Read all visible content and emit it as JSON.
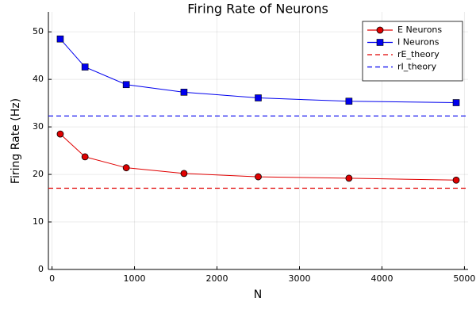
{
  "chart_data": {
    "type": "line",
    "title": "Firing Rate of Neurons",
    "xlabel": "N",
    "ylabel": "Firing Rate (Hz)",
    "x": [
      100,
      400,
      900,
      1600,
      2500,
      3600,
      4900
    ],
    "series": [
      {
        "name": "E Neurons",
        "color": "#e00000",
        "marker": "circle",
        "values": [
          28.5,
          23.7,
          21.4,
          20.2,
          19.5,
          19.2,
          18.8
        ]
      },
      {
        "name": "I Neurons",
        "color": "#0000ee",
        "marker": "square",
        "values": [
          48.5,
          42.6,
          38.9,
          37.3,
          36.1,
          35.4,
          35.1
        ]
      }
    ],
    "hlines": [
      {
        "name": "rE_theory",
        "color": "#e00000",
        "value": 17.1
      },
      {
        "name": "rI_theory",
        "color": "#0000ee",
        "value": 32.3
      }
    ],
    "xlim": [
      -44,
      5044
    ],
    "xticks": [
      0,
      1000,
      2000,
      3000,
      4000,
      5000
    ],
    "ylim": [
      0,
      54.2
    ],
    "yticks": [
      0,
      10,
      20,
      30,
      40,
      50
    ],
    "grid": true,
    "legend": "top-right"
  }
}
